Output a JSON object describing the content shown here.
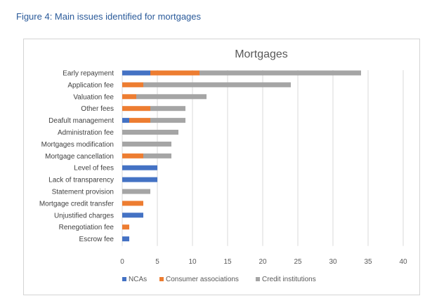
{
  "caption": "Figure 4: Main issues identified for mortgages",
  "chart_data": {
    "type": "bar",
    "orientation": "horizontal",
    "stacked": true,
    "title": "Mortgages",
    "xlabel": "",
    "ylabel": "",
    "xlim": [
      0,
      40
    ],
    "xticks": [
      0,
      5,
      10,
      15,
      20,
      25,
      30,
      35,
      40
    ],
    "grid": true,
    "legend_position": "bottom",
    "categories": [
      "Early repayment",
      "Application fee",
      "Valuation fee",
      "Other fees",
      "Deafult management",
      "Administration fee",
      "Mortgages modification",
      "Mortgage cancellation",
      "Level of fees",
      "Lack of transparency",
      "Statement provision",
      "Mortgage credit transfer",
      "Unjustified charges",
      "Renegotiation fee",
      "Escrow fee"
    ],
    "series": [
      {
        "name": "NCAs",
        "color": "#4472c4",
        "values": [
          4,
          0,
          0,
          0,
          1,
          0,
          0,
          0,
          5,
          5,
          0,
          0,
          3,
          0,
          1
        ]
      },
      {
        "name": "Consumer associations",
        "color": "#ed7d31",
        "values": [
          7,
          3,
          2,
          4,
          3,
          0,
          0,
          3,
          0,
          0,
          0,
          3,
          0,
          1,
          0
        ]
      },
      {
        "name": "Credit institutions",
        "color": "#a5a5a5",
        "values": [
          23,
          21,
          10,
          5,
          5,
          8,
          7,
          4,
          0,
          0,
          4,
          0,
          0,
          0,
          0
        ]
      }
    ]
  }
}
